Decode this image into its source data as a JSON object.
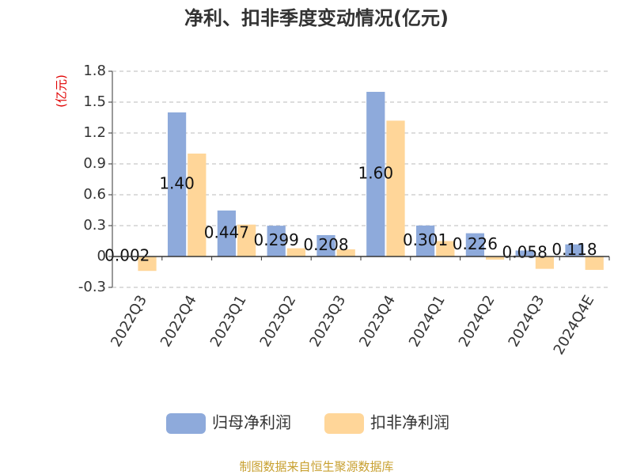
{
  "chart_data": {
    "type": "bar",
    "title": "净利、扣非季度变动情况(亿元)",
    "y_label": "(亿元)",
    "source": "制图数据来自恒生聚源数据库",
    "categories": [
      "2022Q3",
      "2022Q4",
      "2023Q1",
      "2023Q2",
      "2023Q3",
      "2023Q4",
      "2024Q1",
      "2024Q2",
      "2024Q3",
      "2024Q4E"
    ],
    "series": [
      {
        "name": "归母净利润",
        "color": "#8eaadb",
        "values": [
          0.002,
          1.4,
          0.447,
          0.299,
          0.208,
          1.6,
          0.301,
          0.226,
          0.058,
          0.118
        ],
        "value_labels": [
          "0.002",
          "1.40",
          "0.447",
          "0.299",
          "0.208",
          "1.60",
          "0.301",
          "0.226",
          "0.058",
          "0.118"
        ]
      },
      {
        "name": "扣非净利润",
        "color": "#ffd699",
        "values": [
          -0.14,
          1.0,
          0.31,
          0.08,
          0.07,
          1.32,
          0.15,
          -0.03,
          -0.12,
          -0.13
        ]
      }
    ],
    "ylim": [
      -0.3,
      1.8
    ],
    "yticks": [
      -0.3,
      0,
      0.3,
      0.6,
      0.9,
      1.2,
      1.5,
      1.8
    ],
    "grid": true
  }
}
